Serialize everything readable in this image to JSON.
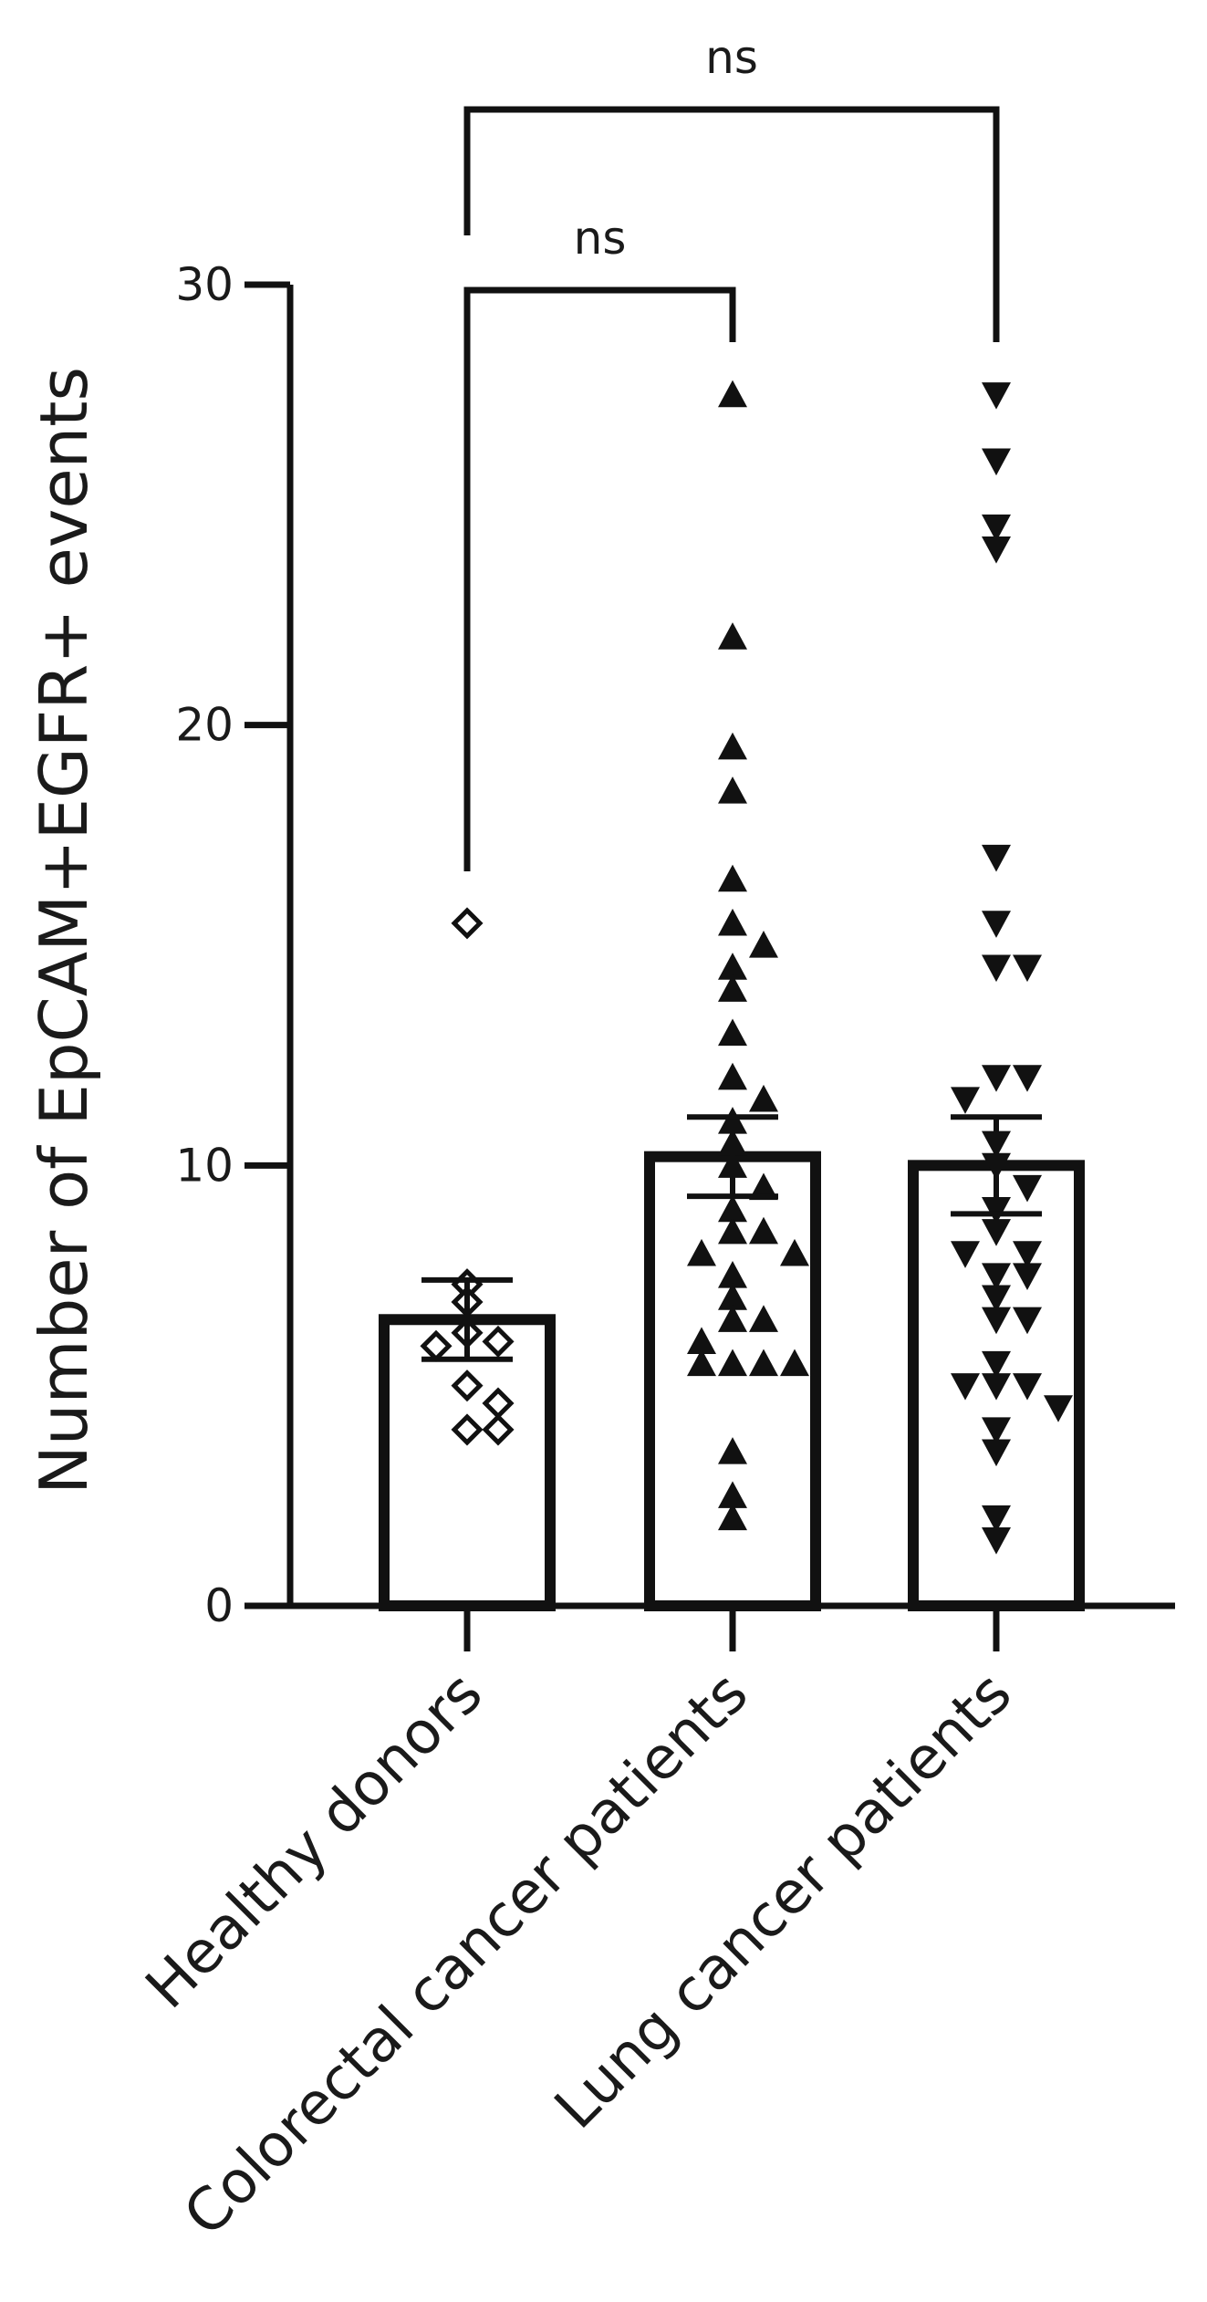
{
  "chart_data": {
    "type": "bar",
    "ylabel": "Number of EpCAM+EGFR+ events",
    "ylim": [
      0,
      30
    ],
    "yticks": [
      "0",
      "10",
      "20",
      "30"
    ],
    "categories": [
      "Healthy donors",
      "Colorectal cancer patients",
      "Lung cancer patients"
    ],
    "values": [
      6.5,
      10.2,
      10.0
    ],
    "error": [
      {
        "low": 5.6,
        "high": 7.4
      },
      {
        "low": 9.3,
        "high": 11.1
      },
      {
        "low": 8.9,
        "high": 11.1
      }
    ],
    "points": [
      {
        "marker": "diamond",
        "y": [
          15.5,
          7.3,
          6.9,
          6.2,
          6.0,
          5.9,
          5.0,
          4.6,
          4.0,
          4.0
        ]
      },
      {
        "marker": "triangle-up",
        "y": [
          27.5,
          22.0,
          19.5,
          18.5,
          16.5,
          15.5,
          15.0,
          14.5,
          14.0,
          13.0,
          12.0,
          11.5,
          11.0,
          10.5,
          10.0,
          9.5,
          9.0,
          8.5,
          8.5,
          8.0,
          8.0,
          7.5,
          7.0,
          6.5,
          6.5,
          6.0,
          5.5,
          5.5,
          5.5,
          5.5,
          3.5,
          2.5,
          2.0
        ]
      },
      {
        "marker": "triangle-down",
        "y": [
          27.5,
          26.0,
          24.5,
          24.0,
          17.0,
          15.5,
          14.5,
          14.5,
          12.0,
          12.0,
          11.5,
          10.5,
          10.0,
          9.5,
          9.0,
          8.5,
          8.0,
          8.0,
          7.5,
          7.5,
          7.0,
          6.5,
          6.5,
          5.5,
          5.0,
          5.0,
          5.0,
          4.5,
          4.0,
          3.5,
          2.0,
          1.5
        ]
      }
    ],
    "comparisons": [
      {
        "from": 0,
        "to": 1,
        "label": "ns"
      },
      {
        "from": 0,
        "to": 2,
        "label": "ns"
      }
    ]
  }
}
